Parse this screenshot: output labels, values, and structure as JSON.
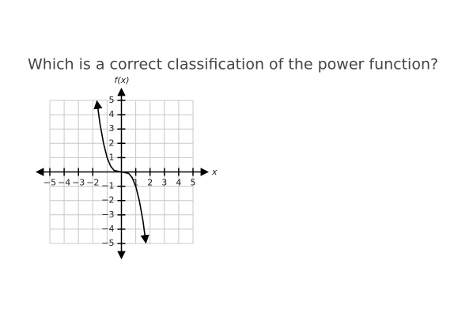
{
  "chart_data": {
    "type": "line",
    "title": "Which is a correct classification of the power function?",
    "y_label": "f(x)",
    "x_label": "x",
    "x": [
      -1.7,
      -1.5,
      -1.25,
      -1,
      -0.75,
      -0.5,
      0,
      0.5,
      0.75,
      1,
      1.25,
      1.5,
      1.7
    ],
    "values": [
      4.9,
      3.4,
      2,
      1,
      0.4,
      0.1,
      0,
      -0.1,
      -0.4,
      -1,
      -2,
      -3.4,
      -4.9
    ],
    "color": "#000000",
    "xlim": [
      -5,
      5
    ],
    "ylim": [
      -5,
      5
    ],
    "xticks": [
      {
        "value": -5,
        "label": "−5"
      },
      {
        "value": -4,
        "label": "−4"
      },
      {
        "value": -3,
        "label": "−3"
      },
      {
        "value": -2,
        "label": "−2"
      },
      1,
      2,
      3,
      4,
      5
    ],
    "yticks": [
      5,
      4,
      3,
      2,
      1,
      {
        "value": -1,
        "label": "−1"
      },
      {
        "value": -2,
        "label": "−2"
      },
      {
        "value": -3,
        "label": "−3"
      },
      {
        "value": -4,
        "label": "−4"
      },
      {
        "value": -5,
        "label": "−5"
      }
    ],
    "grid": true
  }
}
